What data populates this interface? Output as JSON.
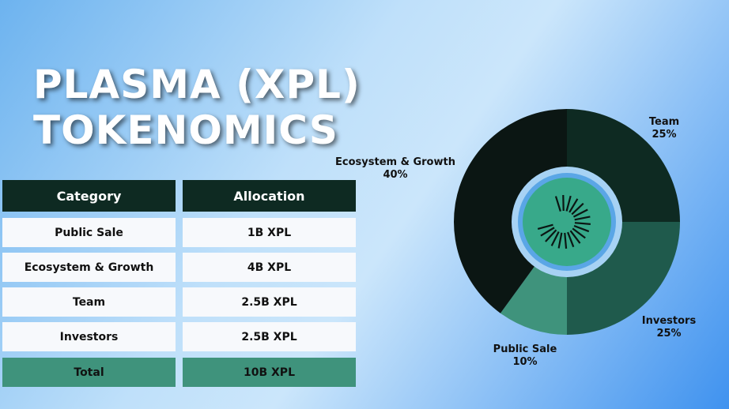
{
  "title_lines": [
    "PLASMA (XPL)",
    "TOKENOMICS"
  ],
  "table": {
    "header": [
      "Category",
      "Allocation"
    ],
    "rows": [
      [
        "Public Sale",
        "1B XPL"
      ],
      [
        "Ecosystem & Growth",
        "4B XPL"
      ],
      [
        "Team",
        "2.5B XPL"
      ],
      [
        "Investors",
        "2.5B XPL"
      ]
    ],
    "total": [
      "Total",
      "10B XPL"
    ]
  },
  "chart_data": {
    "type": "pie",
    "categories": [
      "Team",
      "Investors",
      "Public Sale",
      "Ecosystem & Growth"
    ],
    "values": [
      25,
      25,
      10,
      40
    ],
    "value_labels": [
      "25%",
      "25%",
      "10%",
      "40%"
    ],
    "colors": [
      "#0e2a22",
      "#1f5a4c",
      "#3f937c",
      "#0b1613"
    ]
  }
}
